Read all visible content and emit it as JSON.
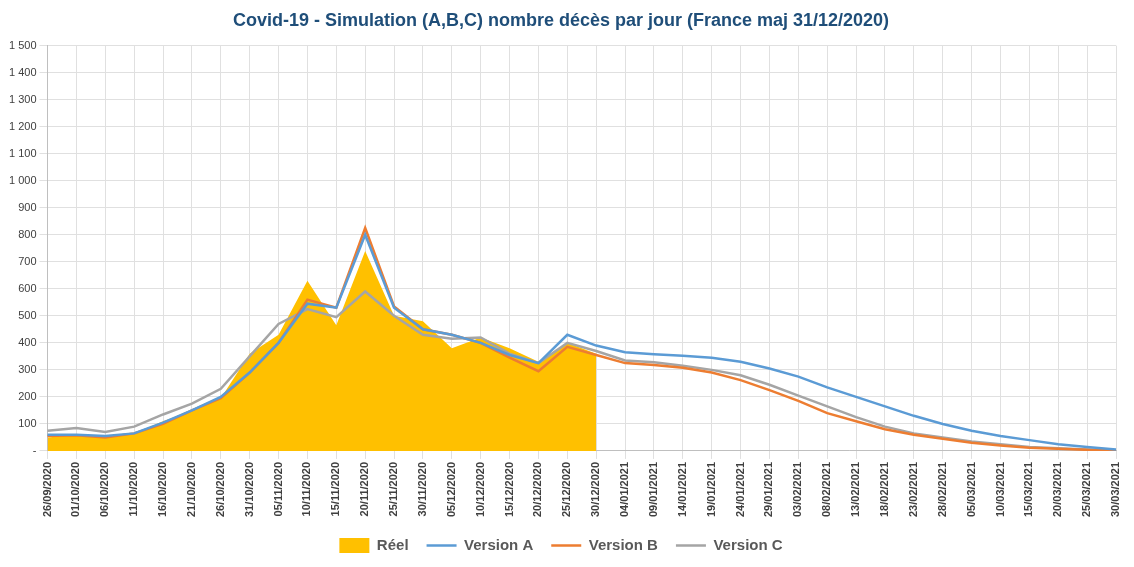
{
  "chart_data": {
    "type": "line",
    "title": "Covid-19 - Simulation (A,B,C) nombre décès par jour (France maj 31/12/2020)",
    "categories": [
      "26/09/2020",
      "01/10/2020",
      "06/10/2020",
      "11/10/2020",
      "16/10/2020",
      "21/10/2020",
      "26/10/2020",
      "31/10/2020",
      "05/11/2020",
      "10/11/2020",
      "15/11/2020",
      "20/11/2020",
      "25/11/2020",
      "30/11/2020",
      "05/12/2020",
      "10/12/2020",
      "15/12/2020",
      "20/12/2020",
      "25/12/2020",
      "30/12/2020",
      "04/01/2021",
      "09/01/2021",
      "14/01/2021",
      "19/01/2021",
      "24/01/2021",
      "29/01/2021",
      "03/02/2021",
      "08/02/2021",
      "13/02/2021",
      "18/02/2021",
      "23/02/2021",
      "28/02/2021",
      "05/03/2021",
      "10/03/2021",
      "15/03/2021",
      "20/03/2021",
      "25/03/2021",
      "30/03/2021"
    ],
    "series": [
      {
        "name": "Réel",
        "type": "area",
        "color": "#ffc000",
        "values": [
          50,
          60,
          55,
          65,
          110,
          150,
          195,
          360,
          430,
          630,
          465,
          740,
          500,
          480,
          380,
          420,
          380,
          330,
          400,
          360,
          null,
          null,
          null,
          null,
          null,
          null,
          null,
          null,
          null,
          null,
          null,
          null,
          null,
          null,
          null,
          null,
          null,
          null
        ]
      },
      {
        "name": "Version A",
        "type": "line",
        "color": "#5b9bd5",
        "values": [
          60,
          60,
          55,
          65,
          105,
          150,
          200,
          290,
          400,
          545,
          530,
          800,
          530,
          450,
          430,
          400,
          355,
          325,
          430,
          390,
          365,
          358,
          352,
          345,
          330,
          305,
          275,
          235,
          200,
          165,
          130,
          100,
          75,
          55,
          40,
          25,
          15,
          5
        ]
      },
      {
        "name": "Version B",
        "type": "line",
        "color": "#ed7d31",
        "values": [
          55,
          58,
          50,
          65,
          100,
          150,
          195,
          290,
          400,
          560,
          530,
          825,
          535,
          450,
          430,
          400,
          345,
          295,
          385,
          355,
          325,
          318,
          308,
          290,
          262,
          225,
          185,
          140,
          110,
          80,
          60,
          45,
          30,
          20,
          12,
          8,
          4,
          2
        ]
      },
      {
        "name": "Version C",
        "type": "line",
        "color": "#a5a5a5",
        "values": [
          75,
          85,
          70,
          90,
          135,
          175,
          230,
          350,
          470,
          525,
          495,
          590,
          500,
          430,
          415,
          420,
          360,
          325,
          400,
          370,
          335,
          328,
          315,
          300,
          280,
          245,
          205,
          165,
          125,
          90,
          65,
          50,
          35,
          25,
          15,
          10,
          5,
          2
        ]
      }
    ],
    "ylim": [
      0,
      1500
    ],
    "yticks": [
      {
        "value": 0,
        "label": "-"
      },
      100,
      200,
      300,
      400,
      500,
      600,
      700,
      800,
      900,
      {
        "value": 1000,
        "label": "1 000"
      },
      {
        "value": 1100,
        "label": "1 100"
      },
      {
        "value": 1200,
        "label": "1 200"
      },
      {
        "value": 1300,
        "label": "1 300"
      },
      {
        "value": 1400,
        "label": "1 400"
      },
      {
        "value": 1500,
        "label": "1 500"
      }
    ],
    "grid": true,
    "legend": "bottom"
  }
}
